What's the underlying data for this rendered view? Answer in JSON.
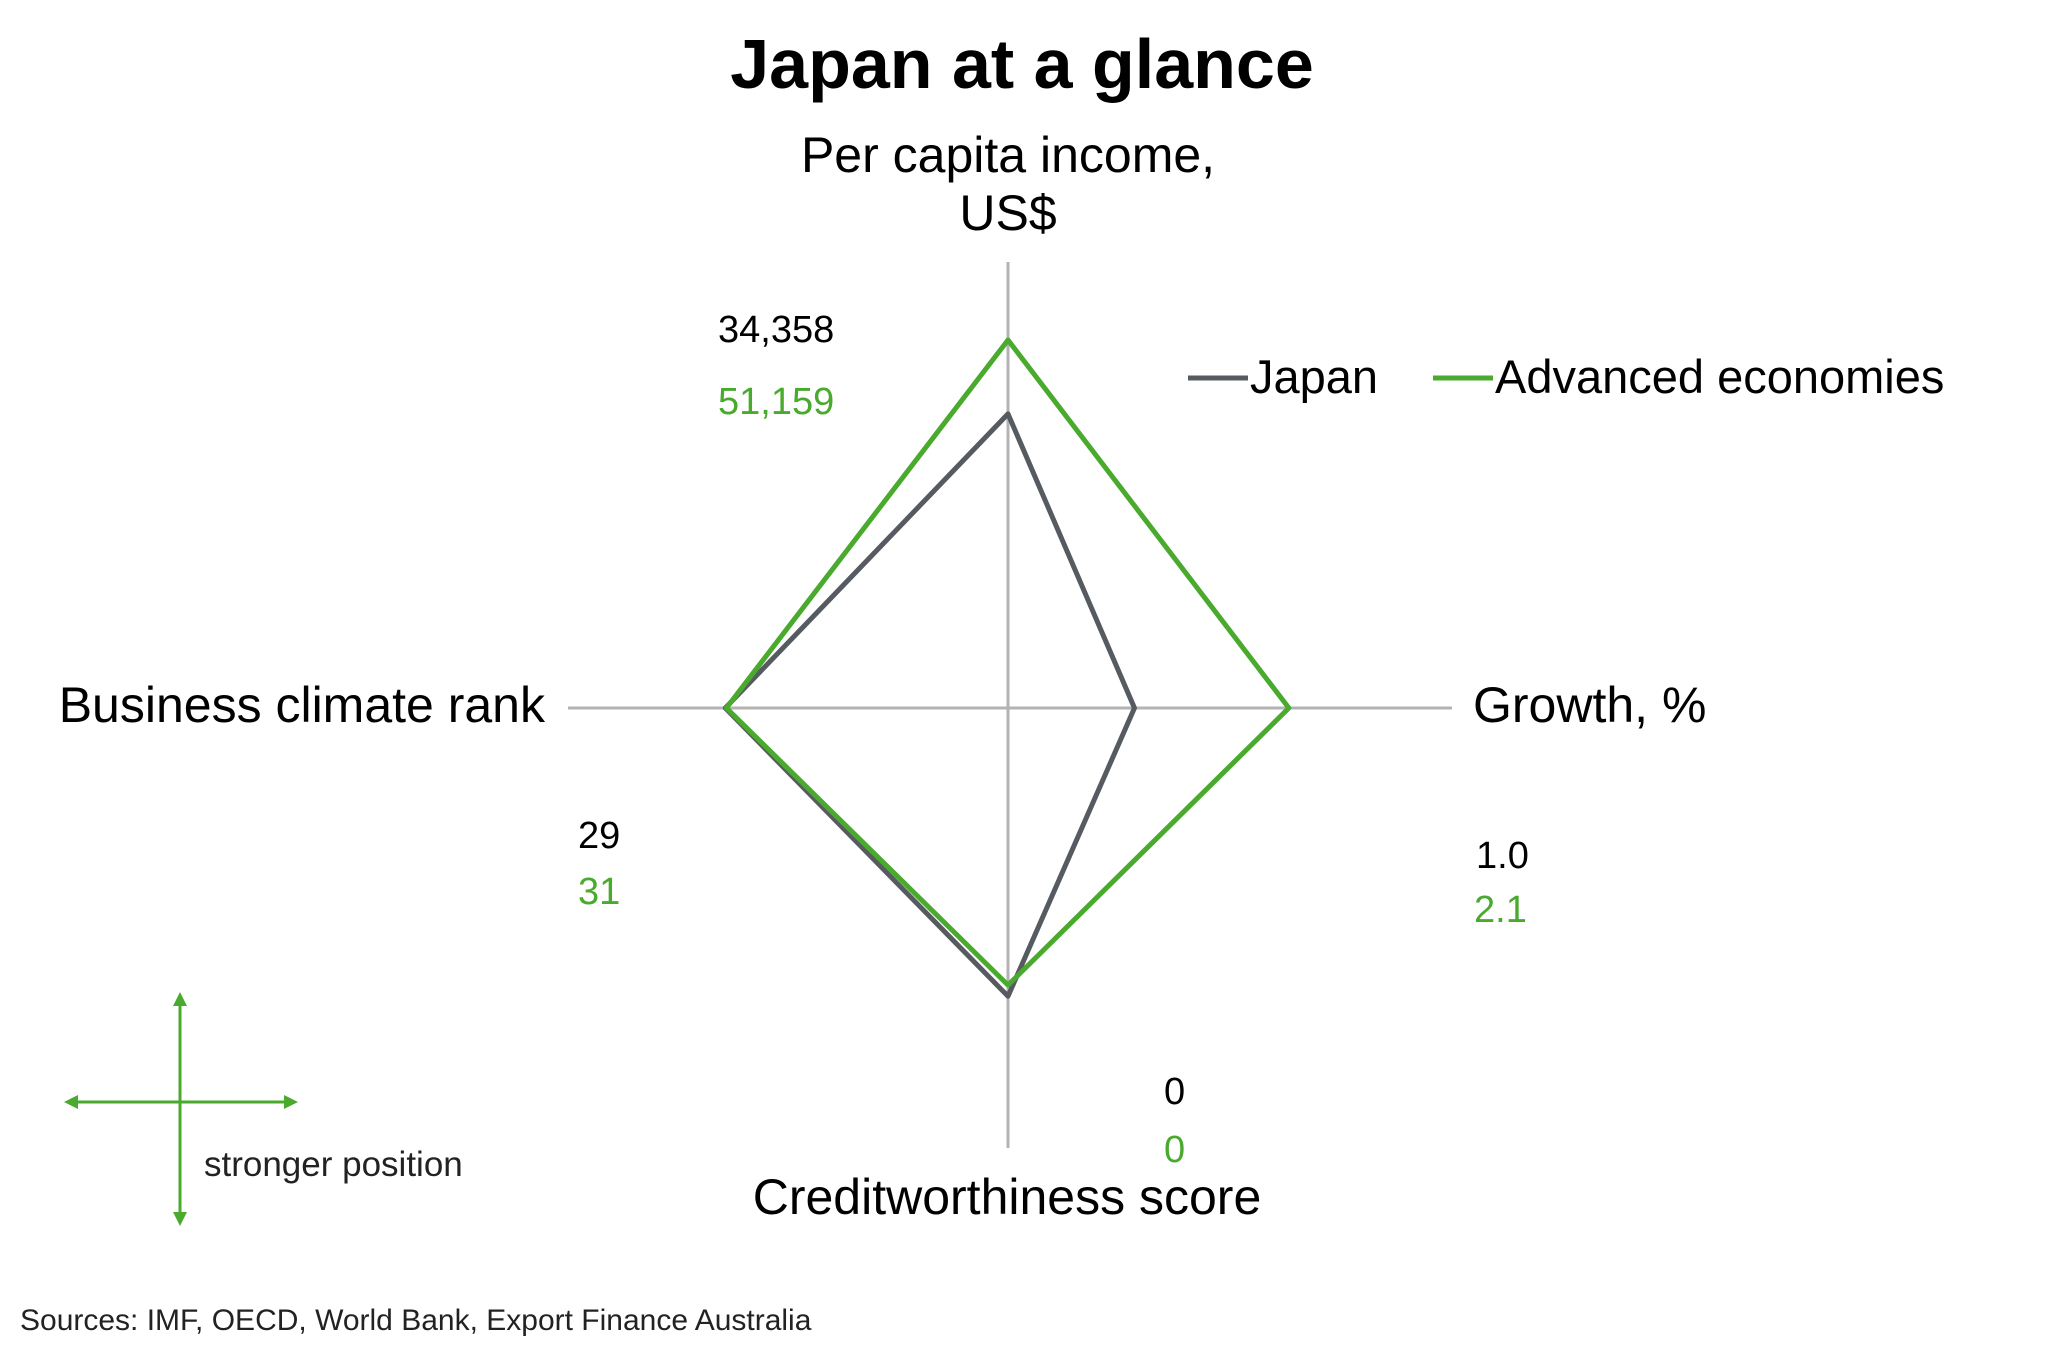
{
  "chart_data": {
    "type": "radar",
    "title": "Japan at a glance",
    "axes": [
      {
        "key": "income",
        "label_lines": [
          "Per capita income,",
          "US$"
        ]
      },
      {
        "key": "growth",
        "label_lines": [
          "Growth, %"
        ]
      },
      {
        "key": "credit",
        "label_lines": [
          "Creditworthiness score"
        ]
      },
      {
        "key": "business",
        "label_lines": [
          "Business climate rank"
        ]
      }
    ],
    "series": [
      {
        "name": "Japan",
        "color": "#555b60",
        "values": {
          "income": 34358,
          "growth": 1.0,
          "credit": 0,
          "business": 29
        },
        "display": {
          "income": "34,358",
          "growth": "1.0",
          "credit": "0",
          "business": "29"
        }
      },
      {
        "name": "Advanced economies",
        "color": "#4aaa2e",
        "values": {
          "income": 51159,
          "growth": 2.1,
          "credit": 0,
          "business": 31
        },
        "display": {
          "income": "51,159",
          "growth": "2.1",
          "credit": "0",
          "business": "31"
        }
      }
    ],
    "legend_position": "top-right"
  },
  "note": {
    "text": "stronger position",
    "color": "#4aaa2e"
  },
  "source": "Sources: IMF, OECD, World Bank, Export Finance Australia",
  "colors": {
    "axis": "#b3b3b3",
    "japan": "#555b60",
    "advanced": "#4aaa2e"
  }
}
